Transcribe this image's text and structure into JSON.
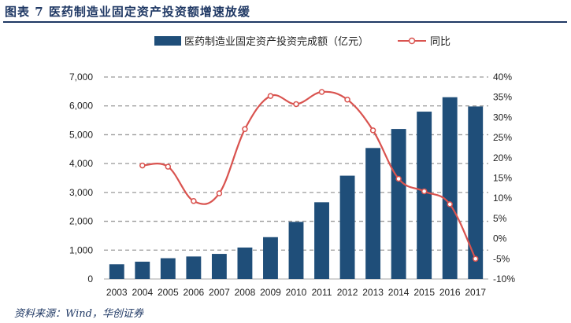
{
  "header": {
    "title": "图表 7   医药制造业固定资产投资额增速放缓"
  },
  "footer": {
    "source": "资料来源：Wind，华创证券"
  },
  "chart_data": {
    "type": "bar",
    "categories": [
      "2003",
      "2004",
      "2005",
      "2006",
      "2007",
      "2008",
      "2009",
      "2010",
      "2011",
      "2012",
      "2013",
      "2014",
      "2015",
      "2016",
      "2017"
    ],
    "series": [
      {
        "name": "医药制造业固定资产投资完成额（亿元）",
        "type": "bar",
        "axis": "left",
        "color": "#1f4e79",
        "values": [
          510,
          600,
          720,
          780,
          870,
          1090,
          1450,
          1980,
          2660,
          3580,
          4540,
          5200,
          5800,
          6300,
          5980
        ]
      },
      {
        "name": "同比",
        "type": "line",
        "axis": "right",
        "color": "#d9534f",
        "values": [
          null,
          18.1,
          17.8,
          9.3,
          11.2,
          27.1,
          35.3,
          33.3,
          36.3,
          34.4,
          26.8,
          14.8,
          11.7,
          8.5,
          -5.0
        ]
      }
    ],
    "y_left": {
      "min": 0,
      "max": 7000,
      "step": 1000,
      "tick_labels": [
        "0",
        "1,000",
        "2,000",
        "3,000",
        "4,000",
        "5,000",
        "6,000",
        "7,000"
      ]
    },
    "y_right": {
      "min": -10,
      "max": 40,
      "step": 5,
      "tick_labels": [
        "-10%",
        "-5%",
        "0%",
        "5%",
        "10%",
        "15%",
        "20%",
        "25%",
        "30%",
        "35%",
        "40%"
      ]
    },
    "grid": "dashed-horizontal",
    "legend": "top-center"
  }
}
